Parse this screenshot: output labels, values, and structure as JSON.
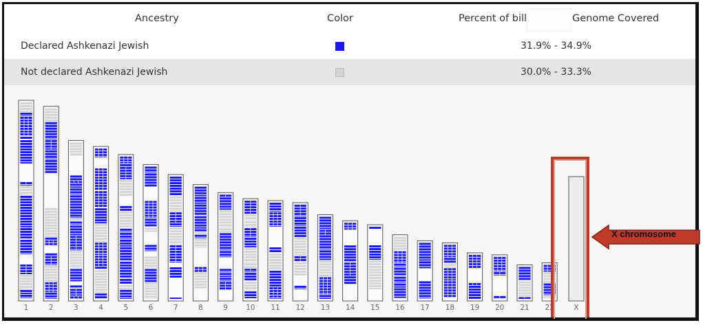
{
  "table": {
    "headers": {
      "ancestry": "Ancestry",
      "color": "Color",
      "percent": "Percent of bill",
      "genome": "Genome Covered"
    },
    "rows": [
      {
        "ancestry": "Declared Ashkenazi Jewish",
        "color": "#1a1aee",
        "percent": "31.9% - 34.9%"
      },
      {
        "ancestry": "Not declared Ashkenazi Jewish",
        "color": "#d4d4d4",
        "percent": "30.0% - 33.3%"
      }
    ]
  },
  "chromosome_labels": [
    "1",
    "2",
    "3",
    "4",
    "5",
    "6",
    "7",
    "8",
    "9",
    "10",
    "11",
    "12",
    "13",
    "14",
    "15",
    "16",
    "17",
    "18",
    "19",
    "20",
    "21",
    "22",
    "X"
  ],
  "chromosome_lengths": [
    1.0,
    0.97,
    0.8,
    0.77,
    0.73,
    0.68,
    0.63,
    0.58,
    0.54,
    0.51,
    0.5,
    0.49,
    0.43,
    0.4,
    0.38,
    0.33,
    0.3,
    0.29,
    0.24,
    0.23,
    0.18,
    0.19,
    0.62
  ],
  "colors": {
    "blue": "#1a1aee",
    "grey": "#d4d4d4",
    "highlight": "#c0392b"
  },
  "annotation": {
    "label": "X chromosome"
  }
}
